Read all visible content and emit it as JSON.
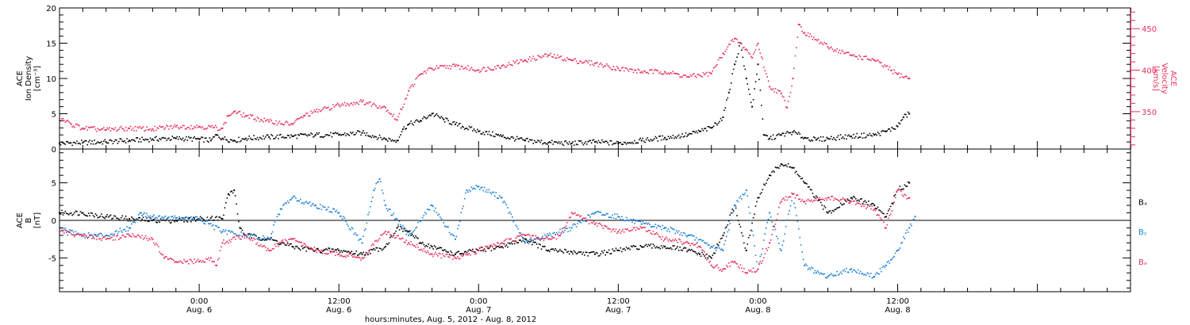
{
  "colors": {
    "black": "#000000",
    "pink": "#e8305a",
    "blue": "#1a7fd8"
  },
  "x_axis": {
    "title": "hours:minutes, Aug.  5, 2012 - Aug.  8, 2012",
    "range_hours": [
      0,
      92
    ],
    "ticks": [
      {
        "hour": 12,
        "time": "0:00",
        "date": "Aug. 6"
      },
      {
        "hour": 24,
        "time": "12:00",
        "date": "Aug. 6"
      },
      {
        "hour": 36,
        "time": "0:00",
        "date": "Aug. 7"
      },
      {
        "hour": 48,
        "time": "12:00",
        "date": "Aug. 7"
      },
      {
        "hour": 60,
        "time": "0:00",
        "date": "Aug. 8"
      },
      {
        "hour": 72,
        "time": "12:00",
        "date": "Aug. 8"
      }
    ]
  },
  "chart_data": [
    {
      "type": "scatter",
      "panel": "top",
      "ylabel_lines": [
        "ACE",
        "Ion Density",
        "[cm⁻³]"
      ],
      "ylim": [
        0,
        20
      ],
      "yticks": [
        0,
        5,
        10,
        15,
        20
      ],
      "y2label_lines": [
        "ACE",
        "Velocity",
        "[km/s]"
      ],
      "y2lim": [
        305,
        475
      ],
      "y2ticks": [
        350,
        400,
        450
      ],
      "series": [
        {
          "name": "",
          "axis": "left",
          "color": "#000000",
          "points": [
            [
              0,
              0.8
            ],
            [
              2,
              0.9
            ],
            [
              4,
              1.0
            ],
            [
              6,
              1.2
            ],
            [
              8,
              1.4
            ],
            [
              10,
              1.5
            ],
            [
              12,
              1.4
            ],
            [
              13,
              1.2
            ],
            [
              13.5,
              2.0
            ],
            [
              14,
              1.5
            ],
            [
              15,
              1.2
            ],
            [
              16,
              1.5
            ],
            [
              18,
              1.7
            ],
            [
              20,
              1.8
            ],
            [
              22,
              2.0
            ],
            [
              24,
              2.0
            ],
            [
              26,
              2.3
            ],
            [
              28,
              1.4
            ],
            [
              29,
              1.2
            ],
            [
              29.5,
              2.8
            ],
            [
              30,
              3.5
            ],
            [
              31,
              4.0
            ],
            [
              32,
              5.0
            ],
            [
              33,
              4.2
            ],
            [
              34,
              3.5
            ],
            [
              36,
              2.5
            ],
            [
              38,
              1.8
            ],
            [
              40,
              1.2
            ],
            [
              42,
              0.9
            ],
            [
              44,
              0.8
            ],
            [
              46,
              1.0
            ],
            [
              48,
              0.8
            ],
            [
              50,
              1.2
            ],
            [
              52,
              1.6
            ],
            [
              54,
              2.0
            ],
            [
              55,
              2.5
            ],
            [
              56,
              3.0
            ],
            [
              57,
              4.5
            ],
            [
              57.5,
              8.0
            ],
            [
              58,
              12.0
            ],
            [
              58.5,
              15.0
            ],
            [
              59,
              10.0
            ],
            [
              59.5,
              6.0
            ],
            [
              60,
              12.0
            ],
            [
              60.5,
              2.0
            ],
            [
              61,
              1.5
            ],
            [
              62,
              2.0
            ],
            [
              63,
              2.4
            ],
            [
              64,
              1.6
            ],
            [
              65,
              1.3
            ],
            [
              66,
              1.5
            ],
            [
              68,
              1.8
            ],
            [
              70,
              2.0
            ],
            [
              71,
              2.5
            ],
            [
              72,
              3.2
            ],
            [
              72.5,
              4.5
            ],
            [
              73,
              5.0
            ]
          ]
        },
        {
          "name": "",
          "axis": "right",
          "color": "#e8305a",
          "points": [
            [
              0,
              342
            ],
            [
              1,
              335
            ],
            [
              2,
              330
            ],
            [
              4,
              328
            ],
            [
              6,
              330
            ],
            [
              8,
              329
            ],
            [
              10,
              332
            ],
            [
              12,
              332
            ],
            [
              14,
              330
            ],
            [
              14.5,
              345
            ],
            [
              15,
              350
            ],
            [
              16,
              345
            ],
            [
              18,
              338
            ],
            [
              20,
              335
            ],
            [
              21,
              345
            ],
            [
              22,
              350
            ],
            [
              24,
              358
            ],
            [
              26,
              362
            ],
            [
              28,
              355
            ],
            [
              29,
              340
            ],
            [
              30,
              375
            ],
            [
              31,
              395
            ],
            [
              32,
              402
            ],
            [
              34,
              405
            ],
            [
              36,
              400
            ],
            [
              38,
              405
            ],
            [
              40,
              412
            ],
            [
              42,
              418
            ],
            [
              44,
              412
            ],
            [
              46,
              408
            ],
            [
              48,
              402
            ],
            [
              50,
              398
            ],
            [
              52,
              398
            ],
            [
              54,
              392
            ],
            [
              56,
              396
            ],
            [
              57,
              420
            ],
            [
              58,
              438
            ],
            [
              59,
              425
            ],
            [
              59.5,
              415
            ],
            [
              60,
              432
            ],
            [
              61,
              380
            ],
            [
              62,
              372
            ],
            [
              62.5,
              355
            ],
            [
              63,
              390
            ],
            [
              63.5,
              455
            ],
            [
              64,
              445
            ],
            [
              66,
              428
            ],
            [
              68,
              418
            ],
            [
              70,
              412
            ],
            [
              72,
              395
            ],
            [
              73,
              390
            ]
          ]
        }
      ]
    },
    {
      "type": "scatter",
      "panel": "bottom",
      "ylabel_lines": [
        "ACE",
        "B",
        "[nT]"
      ],
      "ylim": [
        -9.5,
        9.5
      ],
      "yticks": [
        -5,
        0,
        5
      ],
      "zero_line": true,
      "legend": "right",
      "series": [
        {
          "name": "Bₓ",
          "color": "#000000",
          "points": [
            [
              0,
              1.0
            ],
            [
              2,
              1.0
            ],
            [
              4,
              0.5
            ],
            [
              6,
              0.2
            ],
            [
              8,
              0.0
            ],
            [
              10,
              0.0
            ],
            [
              12,
              0.2
            ],
            [
              13,
              0.3
            ],
            [
              14,
              0.2
            ],
            [
              14.5,
              3.5
            ],
            [
              15,
              4.0
            ],
            [
              15.5,
              -1.0
            ],
            [
              16,
              -2.0
            ],
            [
              18,
              -2.5
            ],
            [
              20,
              -3.5
            ],
            [
              22,
              -4.0
            ],
            [
              24,
              -4.0
            ],
            [
              26,
              -4.5
            ],
            [
              28,
              -3.5
            ],
            [
              29,
              -1.0
            ],
            [
              30,
              -1.5
            ],
            [
              31,
              -3.0
            ],
            [
              32,
              -3.5
            ],
            [
              34,
              -4.5
            ],
            [
              36,
              -4.0
            ],
            [
              38,
              -3.5
            ],
            [
              40,
              -2.5
            ],
            [
              42,
              -4.0
            ],
            [
              44,
              -4.2
            ],
            [
              46,
              -4.5
            ],
            [
              48,
              -4.0
            ],
            [
              50,
              -3.5
            ],
            [
              52,
              -3.5
            ],
            [
              54,
              -4.0
            ],
            [
              55,
              -4.5
            ],
            [
              56,
              -5.0
            ],
            [
              57,
              -2.0
            ],
            [
              58,
              2.0
            ],
            [
              59,
              -4.0
            ],
            [
              60,
              3.0
            ],
            [
              61,
              6.0
            ],
            [
              62,
              7.5
            ],
            [
              63,
              7.0
            ],
            [
              64,
              5.0
            ],
            [
              66,
              1.0
            ],
            [
              68,
              3.0
            ],
            [
              70,
              2.0
            ],
            [
              71,
              0.5
            ],
            [
              72,
              4.0
            ],
            [
              73,
              5.0
            ]
          ]
        },
        {
          "name": "Bᵧ",
          "color": "#1a7fd8",
          "points": [
            [
              0,
              -1.0
            ],
            [
              2,
              -2.0
            ],
            [
              4,
              -2.0
            ],
            [
              6,
              -1.0
            ],
            [
              7,
              1.0
            ],
            [
              8,
              0.5
            ],
            [
              10,
              0.3
            ],
            [
              12,
              0.2
            ],
            [
              14,
              -1.5
            ],
            [
              16,
              -2.0
            ],
            [
              18,
              -2.5
            ],
            [
              19,
              1.5
            ],
            [
              20,
              3.0
            ],
            [
              22,
              2.0
            ],
            [
              24,
              1.0
            ],
            [
              26,
              -3.0
            ],
            [
              27,
              4.0
            ],
            [
              27.5,
              5.5
            ],
            [
              28,
              2.0
            ],
            [
              30,
              -2.0
            ],
            [
              32,
              2.0
            ],
            [
              34,
              -2.5
            ],
            [
              35,
              4.0
            ],
            [
              36,
              4.5
            ],
            [
              38,
              3.0
            ],
            [
              40,
              -3.0
            ],
            [
              42,
              -2.0
            ],
            [
              44,
              -1.0
            ],
            [
              46,
              1.0
            ],
            [
              48,
              0.5
            ],
            [
              50,
              -0.5
            ],
            [
              52,
              -1.0
            ],
            [
              54,
              -2.0
            ],
            [
              56,
              -3.5
            ],
            [
              57,
              -4.0
            ],
            [
              58,
              2.0
            ],
            [
              59,
              4.0
            ],
            [
              60,
              -6.5
            ],
            [
              61,
              1.0
            ],
            [
              62,
              -4.0
            ],
            [
              63,
              3.5
            ],
            [
              64,
              -6.0
            ],
            [
              65,
              -7.0
            ],
            [
              66,
              -7.5
            ],
            [
              68,
              -6.5
            ],
            [
              70,
              -7.5
            ],
            [
              71,
              -6.0
            ],
            [
              72,
              -4.0
            ],
            [
              73,
              -1.0
            ],
            [
              73.5,
              0.5
            ]
          ]
        },
        {
          "name": "Bₔ",
          "color": "#e8305a",
          "points": [
            [
              0,
              -1.5
            ],
            [
              2,
              -2.0
            ],
            [
              4,
              -2.5
            ],
            [
              6,
              -2.0
            ],
            [
              8,
              -2.5
            ],
            [
              9,
              -5.0
            ],
            [
              10,
              -5.5
            ],
            [
              12,
              -5.5
            ],
            [
              13,
              -5.0
            ],
            [
              13.5,
              -6.0
            ],
            [
              14,
              -3.0
            ],
            [
              16,
              -2.0
            ],
            [
              18,
              -4.0
            ],
            [
              19,
              -3.0
            ],
            [
              20,
              -2.5
            ],
            [
              22,
              -4.0
            ],
            [
              24,
              -4.5
            ],
            [
              26,
              -5.0
            ],
            [
              28,
              -1.5
            ],
            [
              30,
              -3.0
            ],
            [
              32,
              -4.5
            ],
            [
              34,
              -5.0
            ],
            [
              36,
              -4.0
            ],
            [
              38,
              -3.0
            ],
            [
              40,
              -2.0
            ],
            [
              42,
              -2.5
            ],
            [
              43,
              -2.0
            ],
            [
              44,
              1.0
            ],
            [
              46,
              -0.5
            ],
            [
              48,
              -1.5
            ],
            [
              50,
              -1.0
            ],
            [
              52,
              -2.5
            ],
            [
              54,
              -3.0
            ],
            [
              55,
              -3.5
            ],
            [
              56,
              -6.0
            ],
            [
              57,
              -6.5
            ],
            [
              58,
              -5.5
            ],
            [
              59,
              -7.0
            ],
            [
              60,
              -6.5
            ],
            [
              61,
              -3.0
            ],
            [
              62,
              2.5
            ],
            [
              63,
              3.5
            ],
            [
              64,
              2.5
            ],
            [
              66,
              3.0
            ],
            [
              68,
              2.5
            ],
            [
              70,
              1.5
            ],
            [
              71,
              -1.0
            ],
            [
              72,
              4.0
            ],
            [
              73,
              3.0
            ]
          ]
        }
      ]
    }
  ]
}
